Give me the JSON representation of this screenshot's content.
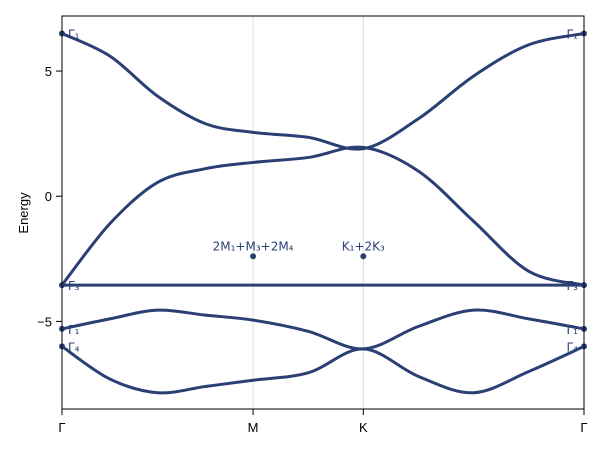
{
  "chart_data": {
    "type": "line",
    "title": "",
    "xlabel": "",
    "ylabel": "Energy",
    "ylim": [
      -8.5,
      7.2
    ],
    "y_ticks": [
      -5,
      0,
      5
    ],
    "y_tick_labels": [
      "−5",
      "0",
      "5"
    ],
    "x_ticks": [
      {
        "label": "Γ",
        "pos": 0.0
      },
      {
        "label": "M",
        "pos": 1.0
      },
      {
        "label": "K",
        "pos": 1.577
      },
      {
        "label": "Γ",
        "pos": 2.732
      }
    ],
    "grid": "vertical at high-symmetry points",
    "line_color": "#2b3f75",
    "series": [
      {
        "x": [
          0.0,
          0.25,
          0.5,
          0.75,
          1.0,
          1.29,
          1.577,
          1.866,
          2.154,
          2.443,
          2.732
        ],
        "y": [
          6.5,
          5.6,
          4.0,
          2.9,
          2.55,
          2.35,
          1.9,
          3.1,
          4.8,
          6.05,
          6.5
        ]
      },
      {
        "x": [
          0.0,
          0.25,
          0.5,
          0.75,
          1.0,
          1.29,
          1.577,
          1.866,
          2.154,
          2.443,
          2.732
        ],
        "y": [
          -3.55,
          -1.1,
          0.55,
          1.1,
          1.35,
          1.55,
          1.95,
          1.0,
          -1.0,
          -3.0,
          -3.55
        ]
      },
      {
        "x": [
          0.0,
          2.732
        ],
        "y": [
          -3.55,
          -3.55
        ]
      },
      {
        "x": [
          0.0,
          0.25,
          0.5,
          0.75,
          1.0,
          1.29,
          1.577,
          1.866,
          2.154,
          2.443,
          2.732
        ],
        "y": [
          -5.3,
          -4.9,
          -4.55,
          -4.75,
          -4.95,
          -5.4,
          -6.1,
          -5.2,
          -4.55,
          -4.9,
          -5.3
        ]
      },
      {
        "x": [
          0.0,
          0.25,
          0.5,
          0.75,
          1.0,
          1.29,
          1.577,
          1.866,
          2.154,
          2.443,
          2.732
        ],
        "y": [
          -6.0,
          -7.3,
          -7.85,
          -7.6,
          -7.35,
          -7.05,
          -6.1,
          -7.2,
          -7.85,
          -7.0,
          -6.0
        ]
      }
    ],
    "band_labels": [
      {
        "text": "Γ₁",
        "x": 0.0,
        "y": 6.5,
        "side": "left"
      },
      {
        "text": "Γ₃",
        "x": 0.0,
        "y": -3.55,
        "side": "left"
      },
      {
        "text": "Γ₁",
        "x": 0.0,
        "y": -5.3,
        "side": "left"
      },
      {
        "text": "Γ₄",
        "x": 0.0,
        "y": -6.0,
        "side": "left"
      },
      {
        "text": "Γ₁",
        "x": 2.732,
        "y": 6.5,
        "side": "right"
      },
      {
        "text": "Γ₃",
        "x": 2.732,
        "y": -3.55,
        "side": "right"
      },
      {
        "text": "Γ₁",
        "x": 2.732,
        "y": -5.3,
        "side": "right"
      },
      {
        "text": "Γ₄",
        "x": 2.732,
        "y": -6.0,
        "side": "right"
      }
    ],
    "annotations": [
      {
        "text": "2M₁+M₃+2M₄",
        "x": 1.0,
        "y": -2.4
      },
      {
        "text": "K₁+2K₃",
        "x": 1.577,
        "y": -2.4
      }
    ]
  }
}
